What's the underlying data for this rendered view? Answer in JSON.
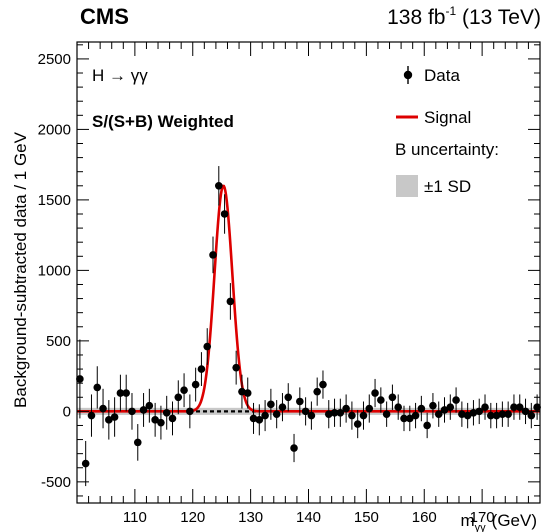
{
  "header": {
    "experiment": "CMS",
    "lumi_value": "138 fb",
    "lumi_exponent": "-1",
    "energy": "(13 TeV)"
  },
  "chart_data": {
    "type": "scatter",
    "process_label": "H → γγ",
    "weighting_label": "S/(S+B) Weighted",
    "ylabel": "Background-subtracted data / 1 GeV",
    "xlabel_main": "m",
    "xlabel_sub": "γγ",
    "xlabel_unit": "(GeV)",
    "xlim": [
      100,
      180
    ],
    "ylim": [
      -650,
      2620
    ],
    "x_ticks": [
      110,
      120,
      130,
      140,
      150,
      160,
      170
    ],
    "y_ticks": [
      -500,
      0,
      500,
      1000,
      1500,
      2000,
      2500
    ],
    "legend": {
      "data": "Data",
      "signal": "Signal",
      "uncertainty_title": "B uncertainty:",
      "band": "±1 SD"
    },
    "colors": {
      "signal": "#dd0000",
      "band": "#c8c8c8",
      "data": "#000000"
    },
    "signal_model": {
      "mean": 125.3,
      "sigma": 1.55,
      "peak": 1600
    },
    "data": {
      "x": [
        100.5,
        101.5,
        102.5,
        103.5,
        104.5,
        105.5,
        106.5,
        107.5,
        108.5,
        109.5,
        110.5,
        111.5,
        112.5,
        113.5,
        114.5,
        115.5,
        116.5,
        117.5,
        118.5,
        119.5,
        120.5,
        121.5,
        122.5,
        123.5,
        124.5,
        125.5,
        126.5,
        127.5,
        128.5,
        129.5,
        130.5,
        131.5,
        132.5,
        133.5,
        134.5,
        135.5,
        136.5,
        137.5,
        138.5,
        139.5,
        140.5,
        141.5,
        142.5,
        143.5,
        144.5,
        145.5,
        146.5,
        147.5,
        148.5,
        149.5,
        150.5,
        151.5,
        152.5,
        153.5,
        154.5,
        155.5,
        156.5,
        157.5,
        158.5,
        159.5,
        160.5,
        161.5,
        162.5,
        163.5,
        164.5,
        165.5,
        166.5,
        167.5,
        168.5,
        169.5,
        170.5,
        171.5,
        172.5,
        173.5,
        174.5,
        175.5,
        176.5,
        177.5,
        178.5,
        179.5
      ],
      "y": [
        230,
        -370,
        -30,
        170,
        20,
        -60,
        -40,
        130,
        130,
        0,
        -220,
        10,
        40,
        -60,
        -80,
        -10,
        -50,
        100,
        150,
        0,
        190,
        300,
        460,
        1110,
        1600,
        1400,
        780,
        310,
        140,
        130,
        -50,
        -60,
        -30,
        50,
        -20,
        30,
        100,
        -260,
        70,
        0,
        -30,
        140,
        190,
        -20,
        -10,
        -10,
        20,
        -30,
        -90,
        -30,
        20,
        130,
        80,
        -20,
        100,
        30,
        -50,
        -50,
        -30,
        20,
        -100,
        40,
        -20,
        10,
        30,
        80,
        -20,
        -30,
        -10,
        0,
        30,
        -30,
        -30,
        -20,
        -20,
        30,
        30,
        0,
        -30,
        30
      ],
      "yerr": [
        280,
        160,
        150,
        150,
        140,
        140,
        140,
        130,
        130,
        130,
        130,
        120,
        120,
        120,
        120,
        120,
        120,
        120,
        120,
        120,
        120,
        120,
        130,
        130,
        140,
        140,
        130,
        120,
        120,
        110,
        110,
        110,
        110,
        110,
        100,
        100,
        100,
        100,
        100,
        100,
        100,
        100,
        100,
        100,
        100,
        100,
        100,
        100,
        100,
        100,
        100,
        100,
        90,
        90,
        90,
        90,
        90,
        90,
        90,
        90,
        90,
        90,
        90,
        90,
        90,
        90,
        90,
        90,
        90,
        90,
        90,
        90,
        90,
        90,
        90,
        90,
        90,
        90,
        90,
        90
      ]
    }
  }
}
